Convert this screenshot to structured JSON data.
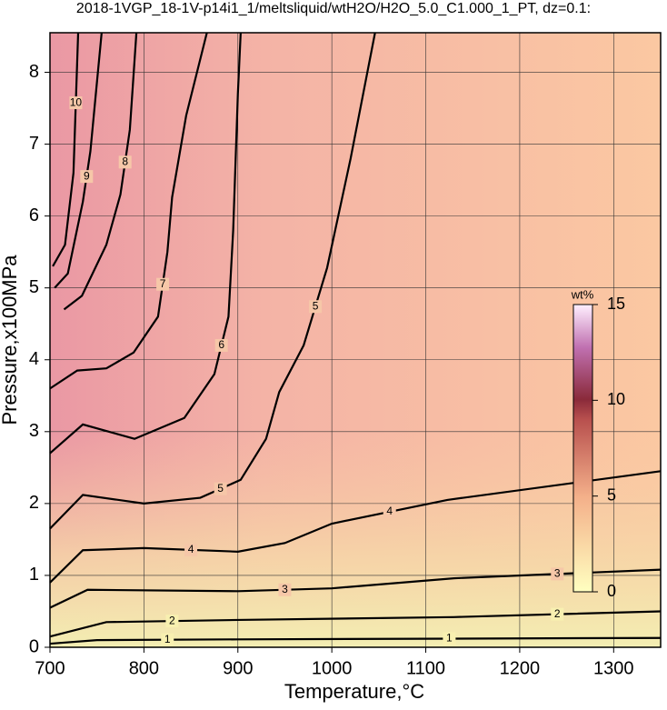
{
  "chart_data": {
    "type": "contour",
    "title": "2018-1VGP_18-1V-p14i1_1/meltsliquid/wtH2O/H2O_5.0_C1.000_1_PT, dz=0.1:",
    "x_label": "Temperature,°C",
    "y_label": "Pressure,x100MPa",
    "xlim": [
      700,
      1350
    ],
    "ylim": [
      0,
      8.55
    ],
    "xticks": [
      700,
      800,
      900,
      1000,
      1100,
      1200,
      1300
    ],
    "yticks": [
      0,
      1,
      2,
      3,
      4,
      5,
      6,
      7,
      8
    ],
    "grid": true,
    "contours": [
      {
        "level": 1,
        "x": [
          700,
          750,
          900,
          1350
        ],
        "y": [
          0.05,
          0.1,
          0.11,
          0.13
        ]
      },
      {
        "level": 2,
        "x": [
          700,
          760,
          900,
          1130,
          1350
        ],
        "y": [
          0.15,
          0.35,
          0.38,
          0.42,
          0.5
        ]
      },
      {
        "level": 3,
        "x": [
          700,
          740,
          900,
          1000,
          1130,
          1350
        ],
        "y": [
          0.55,
          0.8,
          0.78,
          0.82,
          0.96,
          1.08
        ]
      },
      {
        "level": 4,
        "x": [
          700,
          735,
          800,
          900,
          950,
          1000,
          1123,
          1350
        ],
        "y": [
          0.9,
          1.35,
          1.38,
          1.33,
          1.45,
          1.72,
          2.05,
          2.45
        ]
      },
      {
        "level": 5,
        "x": [
          700,
          735,
          800,
          860,
          903,
          930,
          944,
          970,
          995,
          1020,
          1046
        ],
        "y": [
          1.65,
          2.12,
          2.0,
          2.08,
          2.33,
          2.9,
          3.55,
          4.2,
          5.28,
          6.8,
          8.55
        ]
      },
      {
        "level": 6,
        "x": [
          700,
          735,
          790,
          843,
          875,
          890,
          895,
          900,
          903
        ],
        "y": [
          2.7,
          3.1,
          2.9,
          3.19,
          3.8,
          4.6,
          5.8,
          7.7,
          8.55
        ]
      },
      {
        "level": 7,
        "x": [
          700,
          729,
          760,
          789,
          815,
          825,
          830,
          845,
          867
        ],
        "y": [
          3.6,
          3.85,
          3.88,
          4.1,
          4.6,
          5.5,
          6.26,
          7.4,
          8.55
        ]
      },
      {
        "level": 8,
        "x": [
          715,
          734,
          760,
          775,
          785,
          792
        ],
        "y": [
          4.7,
          4.89,
          5.6,
          6.3,
          7.2,
          8.55
        ]
      },
      {
        "level": 9,
        "x": [
          705,
          719,
          735,
          743,
          755
        ],
        "y": [
          5.0,
          5.2,
          6.2,
          6.9,
          8.55
        ]
      },
      {
        "level": 10,
        "x": [
          703,
          716,
          725,
          730
        ],
        "y": [
          5.3,
          5.6,
          6.6,
          8.55
        ]
      }
    ],
    "colorbar": {
      "label": "wt%",
      "lim": [
        0,
        15
      ],
      "ticks": [
        0,
        5,
        10,
        15
      ]
    }
  }
}
